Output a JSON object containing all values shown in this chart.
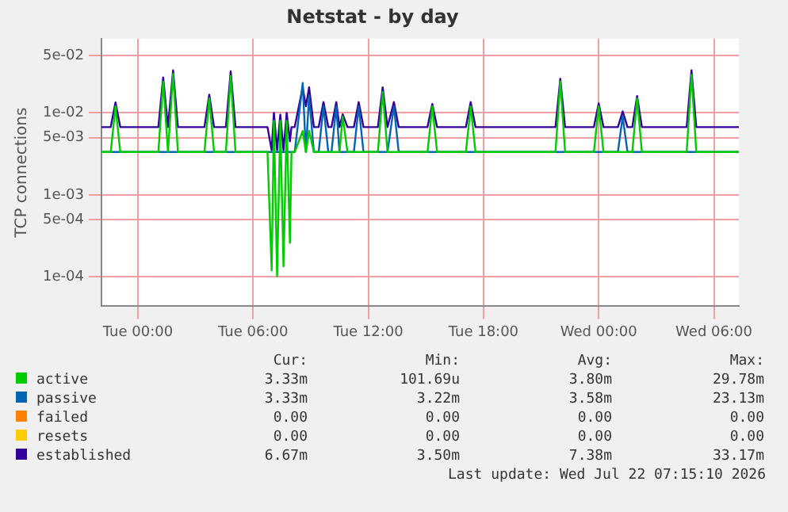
{
  "chart_data": {
    "type": "line",
    "title": "Netstat - by day",
    "ylabel": "TCP connections",
    "log": "y",
    "grid": true,
    "legend": "bottom",
    "marker": "none",
    "line_style": "solid",
    "xlim": [
      "2026-07-20T22:06",
      "2026-07-22T07:18"
    ],
    "xticks": [
      {
        "value": "2026-07-21T00:00",
        "label": "Tue 00:00"
      },
      {
        "value": "2026-07-21T06:00",
        "label": "Tue 06:00"
      },
      {
        "value": "2026-07-21T12:00",
        "label": "Tue 12:00"
      },
      {
        "value": "2026-07-21T18:00",
        "label": "Tue 18:00"
      },
      {
        "value": "2026-07-22T00:00",
        "label": "Wed 00:00"
      },
      {
        "value": "2026-07-22T06:00",
        "label": "Wed 06:00"
      }
    ],
    "ylim": [
      4.4e-05,
      0.08
    ],
    "yticks": [
      {
        "value": 0.05,
        "label": "5e-02"
      },
      {
        "value": 0.01,
        "label": "1e-02"
      },
      {
        "value": 0.005,
        "label": "5e-03"
      },
      {
        "value": 0.001,
        "label": "1e-03"
      },
      {
        "value": 0.0005,
        "label": "5e-04"
      },
      {
        "value": 0.0001,
        "label": "1e-04"
      }
    ],
    "x": [
      "2026-07-20T22:06",
      "2026-07-20T22:35",
      "2026-07-20T22:50",
      "2026-07-20T23:05",
      "2026-07-21T01:04",
      "2026-07-21T01:19",
      "2026-07-21T01:34",
      "2026-07-21T01:50",
      "2026-07-21T02:05",
      "2026-07-21T03:28",
      "2026-07-21T03:43",
      "2026-07-21T03:58",
      "2026-07-21T04:35",
      "2026-07-21T04:50",
      "2026-07-21T05:05",
      "2026-07-21T06:45",
      "2026-07-21T06:58",
      "2026-07-21T07:05",
      "2026-07-21T07:15",
      "2026-07-21T07:25",
      "2026-07-21T07:35",
      "2026-07-21T07:45",
      "2026-07-21T07:55",
      "2026-07-21T08:00",
      "2026-07-21T08:10",
      "2026-07-21T08:35",
      "2026-07-21T08:45",
      "2026-07-21T08:55",
      "2026-07-21T09:10",
      "2026-07-21T09:25",
      "2026-07-21T09:40",
      "2026-07-21T09:55",
      "2026-07-21T10:05",
      "2026-07-21T10:20",
      "2026-07-21T10:30",
      "2026-07-21T10:40",
      "2026-07-21T10:55",
      "2026-07-21T11:15",
      "2026-07-21T11:30",
      "2026-07-21T11:45",
      "2026-07-21T12:30",
      "2026-07-21T12:45",
      "2026-07-21T13:00",
      "2026-07-21T13:20",
      "2026-07-21T13:35",
      "2026-07-21T15:05",
      "2026-07-21T15:20",
      "2026-07-21T15:35",
      "2026-07-21T17:05",
      "2026-07-21T17:20",
      "2026-07-21T17:35",
      "2026-07-21T21:45",
      "2026-07-21T22:00",
      "2026-07-21T22:15",
      "2026-07-21T23:45",
      "2026-07-22T00:00",
      "2026-07-22T00:15",
      "2026-07-22T01:00",
      "2026-07-22T01:15",
      "2026-07-22T01:30",
      "2026-07-22T01:45",
      "2026-07-22T02:00",
      "2026-07-22T02:15",
      "2026-07-22T04:35",
      "2026-07-22T04:50",
      "2026-07-22T05:05",
      "2026-07-22T07:18"
    ],
    "series": [
      {
        "name": "active",
        "color": "#00cc00",
        "values": [
          0.00333,
          0.00333,
          0.012,
          0.00333,
          0.00333,
          0.024,
          0.00333,
          0.0298,
          0.00333,
          0.00333,
          0.015,
          0.00333,
          0.00333,
          0.028,
          0.00333,
          0.00333,
          0.00012,
          0.008,
          0.000102,
          0.008,
          0.000135,
          0.008,
          0.00026,
          0.00333,
          0.00333,
          0.006,
          0.00333,
          0.006,
          0.00333,
          0.00333,
          0.00333,
          0.00333,
          0.00333,
          0.00333,
          0.00333,
          0.009,
          0.00333,
          0.00333,
          0.00333,
          0.00333,
          0.00333,
          0.018,
          0.00333,
          0.00333,
          0.00333,
          0.00333,
          0.012,
          0.00333,
          0.00333,
          0.012,
          0.00333,
          0.00333,
          0.024,
          0.00333,
          0.00333,
          0.012,
          0.00333,
          0.00333,
          0.00333,
          0.00333,
          0.00333,
          0.015,
          0.00333,
          0.00333,
          0.029,
          0.00333,
          0.00333
        ]
      },
      {
        "name": "passive",
        "color": "#0066b3",
        "values": [
          0.00333,
          0.00333,
          0.00333,
          0.00333,
          0.00333,
          0.00333,
          0.00333,
          0.00333,
          0.00333,
          0.00333,
          0.00333,
          0.00333,
          0.00333,
          0.00333,
          0.00333,
          0.00333,
          0.00333,
          0.00333,
          0.00333,
          0.00333,
          0.00333,
          0.00333,
          0.00333,
          0.00333,
          0.00333,
          0.0231,
          0.00333,
          0.016,
          0.00333,
          0.00333,
          0.012,
          0.00333,
          0.00333,
          0.012,
          0.00333,
          0.00333,
          0.00333,
          0.00333,
          0.012,
          0.00333,
          0.00333,
          0.00333,
          0.00333,
          0.012,
          0.00333,
          0.00333,
          0.00333,
          0.00333,
          0.00333,
          0.00333,
          0.00333,
          0.00333,
          0.00333,
          0.00333,
          0.00333,
          0.00333,
          0.00333,
          0.00333,
          0.009,
          0.00333,
          0.00333,
          0.00333,
          0.00333,
          0.00333,
          0.00333,
          0.00333,
          0.00333
        ]
      },
      {
        "name": "failed",
        "color": "#ff8000",
        "values": [
          null,
          null,
          null,
          null,
          null,
          null,
          null,
          null,
          null,
          null,
          null,
          null,
          null,
          null,
          null,
          null,
          null,
          null,
          null,
          null,
          null,
          null,
          null,
          null,
          null,
          null,
          null,
          null,
          null,
          null,
          null,
          null,
          null,
          null,
          null,
          null,
          null,
          null,
          null,
          null,
          null,
          null,
          null,
          null,
          null,
          null,
          null,
          null,
          null,
          null,
          null,
          null,
          null,
          null,
          null,
          null,
          null,
          null,
          null,
          null,
          null,
          null,
          null,
          null,
          null,
          null,
          null
        ]
      },
      {
        "name": "resets",
        "color": "#ffcc00",
        "values": [
          null,
          null,
          null,
          null,
          null,
          null,
          null,
          null,
          null,
          null,
          null,
          null,
          null,
          null,
          null,
          null,
          null,
          null,
          null,
          null,
          null,
          null,
          null,
          null,
          null,
          null,
          null,
          null,
          null,
          null,
          null,
          null,
          null,
          null,
          null,
          null,
          null,
          null,
          null,
          null,
          null,
          null,
          null,
          null,
          null,
          null,
          null,
          null,
          null,
          null,
          null,
          null,
          null,
          null,
          null,
          null,
          null,
          null,
          null,
          null,
          null,
          null,
          null,
          null,
          null,
          null,
          null
        ]
      },
      {
        "name": "established",
        "color": "#330099",
        "values": [
          0.0067,
          0.0067,
          0.0134,
          0.0067,
          0.0067,
          0.027,
          0.0067,
          0.033,
          0.0067,
          0.0067,
          0.0166,
          0.0067,
          0.0067,
          0.032,
          0.0067,
          0.0067,
          0.0035,
          0.01,
          0.0035,
          0.0095,
          0.0035,
          0.01,
          0.0045,
          0.0067,
          0.0067,
          0.0204,
          0.012,
          0.0204,
          0.0067,
          0.0067,
          0.0135,
          0.0067,
          0.0067,
          0.0135,
          0.0067,
          0.0096,
          0.0067,
          0.0067,
          0.0135,
          0.0067,
          0.0067,
          0.0204,
          0.0067,
          0.0135,
          0.0067,
          0.0067,
          0.0128,
          0.0067,
          0.0067,
          0.0135,
          0.0067,
          0.0067,
          0.026,
          0.0067,
          0.0067,
          0.013,
          0.0067,
          0.0067,
          0.0104,
          0.0067,
          0.0067,
          0.016,
          0.0067,
          0.0067,
          0.033,
          0.0067,
          0.0067
        ]
      }
    ],
    "annotations": [
      "Cur:",
      "Min:",
      "Avg:",
      "Max:",
      "3.33m",
      "101.69u",
      "3.80m",
      "29.78m",
      "3.33m",
      "3.22m",
      "3.58m",
      "23.13m",
      "0.00",
      "0.00",
      "0.00",
      "0.00",
      "0.00",
      "0.00",
      "0.00",
      "0.00",
      "6.67m",
      "3.50m",
      "7.38m",
      "33.17m",
      "Last update: Wed Jul 22 07:15:10 2026"
    ]
  }
}
